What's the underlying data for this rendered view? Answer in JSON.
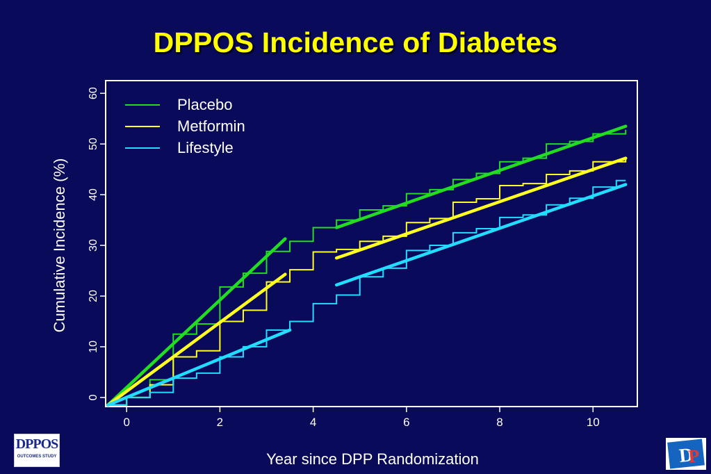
{
  "title": "DPPOS Incidence of Diabetes",
  "logos": {
    "left_mark": "DPPOS",
    "left_sub": "OUTCOMES STUDY",
    "right_mark": "DPP"
  },
  "colors": {
    "background": "#0a0a5a",
    "title": "#ffff00",
    "axis": "#ffffff",
    "placebo": "#22dd22",
    "metformin": "#ffff22",
    "lifestyle": "#22ddff"
  },
  "chart_data": {
    "type": "line",
    "xlabel": "Year since DPP Randomization",
    "ylabel": "Cumulative Incidence (%)",
    "xlim": [
      -0.45,
      10.95
    ],
    "ylim": [
      -1.8,
      62.5
    ],
    "xticks": [
      0,
      2,
      4,
      6,
      8,
      10
    ],
    "yticks": [
      0,
      10,
      20,
      30,
      40,
      50,
      60
    ],
    "legend": {
      "position": "top-left"
    },
    "series": [
      {
        "name": "Placebo",
        "color": "#22dd22",
        "steps": [
          [
            -0.4,
            -1.5
          ],
          [
            0,
            0
          ],
          [
            0.5,
            3.5
          ],
          [
            1,
            12.5
          ],
          [
            1.5,
            14.5
          ],
          [
            2,
            21.8
          ],
          [
            2.5,
            24.5
          ],
          [
            3,
            28.8
          ],
          [
            3.5,
            30.8
          ],
          [
            4,
            33.5
          ],
          [
            4.5,
            35
          ],
          [
            5,
            37
          ],
          [
            5.5,
            37.8
          ],
          [
            6,
            40.2
          ],
          [
            6.5,
            41
          ],
          [
            7,
            43
          ],
          [
            7.5,
            44.2
          ],
          [
            8,
            46.5
          ],
          [
            8.5,
            47.2
          ],
          [
            9,
            50
          ],
          [
            9.5,
            50.5
          ],
          [
            10,
            52
          ],
          [
            10.7,
            52.8
          ]
        ],
        "fits": [
          [
            [
              -0.4,
              -1.5
            ],
            [
              3.4,
              31.3
            ]
          ],
          [
            [
              4.5,
              33.5
            ],
            [
              10.7,
              53.5
            ]
          ]
        ]
      },
      {
        "name": "Metformin",
        "color": "#ffff22",
        "steps": [
          [
            -0.4,
            -1.5
          ],
          [
            0,
            0
          ],
          [
            0.5,
            2.5
          ],
          [
            1,
            8
          ],
          [
            1.5,
            9.2
          ],
          [
            2,
            15
          ],
          [
            2.5,
            17.2
          ],
          [
            3,
            22.8
          ],
          [
            3.5,
            25.2
          ],
          [
            4,
            28.7
          ],
          [
            4.5,
            29.2
          ],
          [
            5,
            30.8
          ],
          [
            5.5,
            31.8
          ],
          [
            6,
            34.5
          ],
          [
            6.5,
            35.3
          ],
          [
            7,
            38.5
          ],
          [
            7.5,
            39.2
          ],
          [
            8,
            41.8
          ],
          [
            8.5,
            42.2
          ],
          [
            9,
            44
          ],
          [
            9.5,
            44.7
          ],
          [
            10,
            46.5
          ],
          [
            10.7,
            47
          ]
        ],
        "fits": [
          [
            [
              -0.4,
              -1.5
            ],
            [
              3.4,
              24.3
            ]
          ],
          [
            [
              4.5,
              27.5
            ],
            [
              10.7,
              47.2
            ]
          ]
        ]
      },
      {
        "name": "Lifestyle",
        "color": "#22ddff",
        "steps": [
          [
            -0.4,
            -1.5
          ],
          [
            0,
            0
          ],
          [
            0.5,
            1
          ],
          [
            1,
            3.8
          ],
          [
            1.5,
            4.8
          ],
          [
            2,
            8
          ],
          [
            2.5,
            10
          ],
          [
            3,
            13.3
          ],
          [
            3.5,
            15
          ],
          [
            4,
            18.5
          ],
          [
            4.5,
            20.2
          ],
          [
            5,
            23.8
          ],
          [
            5.5,
            25.5
          ],
          [
            6,
            29
          ],
          [
            6.5,
            30
          ],
          [
            7,
            32.5
          ],
          [
            7.5,
            33.3
          ],
          [
            8,
            35.5
          ],
          [
            8.5,
            36
          ],
          [
            9,
            38
          ],
          [
            9.5,
            39.3
          ],
          [
            10,
            41.5
          ],
          [
            10.5,
            42.8
          ],
          [
            10.7,
            42.8
          ]
        ],
        "fits": [
          [
            [
              -0.4,
              -1.5
            ],
            [
              3.5,
              13.3
            ]
          ],
          [
            [
              4.5,
              22.2
            ],
            [
              10.7,
              42
            ]
          ]
        ]
      }
    ]
  }
}
